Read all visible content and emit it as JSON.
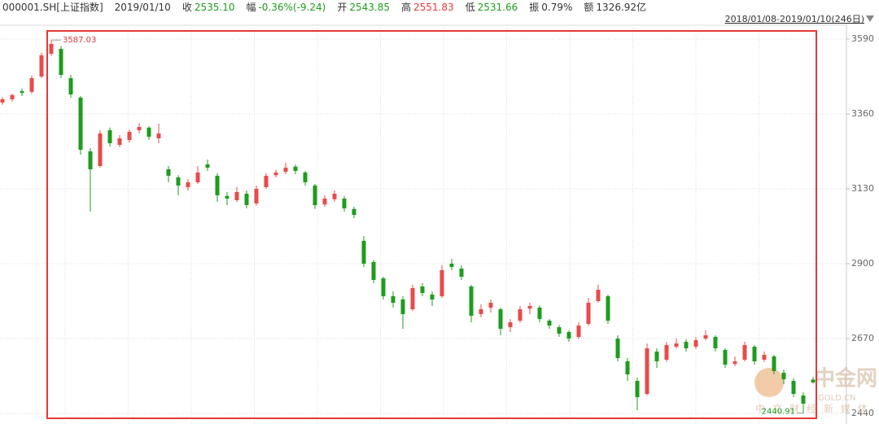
{
  "chart_data": {
    "type": "candlestick",
    "info": [
      {
        "label": "000001.SH[上证指数]",
        "color": "#333333"
      },
      {
        "label": "2019/01/10",
        "color": "#333333"
      },
      {
        "label": "收",
        "value": "2535.10",
        "color": "#1e9c1e"
      },
      {
        "label": "幅",
        "value": "-0.36%(-9.24)",
        "color": "#1e9c1e"
      },
      {
        "label": "开",
        "value": "2543.85",
        "color": "#1e9c1e"
      },
      {
        "label": "高",
        "value": "2551.83",
        "color": "#e23a3a"
      },
      {
        "label": "低",
        "value": "2531.66",
        "color": "#1e9c1e"
      },
      {
        "label": "振",
        "value": "0.79%",
        "color": "#333333"
      },
      {
        "label": "额",
        "value": "1326.92亿",
        "color": "#333333"
      }
    ],
    "range_label": "2018/01/08-2019/01/10(246日)",
    "up_color": "#e84b4b",
    "down_color": "#1e9c1e",
    "ylim": [
      2417.5,
      3635
    ],
    "yticks": [
      2440,
      2670,
      2900,
      3130,
      3360,
      3590
    ],
    "grid": true,
    "candles": [
      [
        3395,
        3412,
        3388,
        3405
      ],
      [
        3405,
        3422,
        3398,
        3418
      ],
      [
        3430,
        3438,
        3415,
        3425
      ],
      [
        3428,
        3478,
        3422,
        3470
      ],
      [
        3475,
        3548,
        3470,
        3540
      ],
      [
        3545,
        3587.03,
        3538,
        3575
      ],
      [
        3560,
        3568,
        3470,
        3480
      ],
      [
        3470,
        3480,
        3410,
        3420
      ],
      [
        3410,
        3415,
        3235,
        3250
      ],
      [
        3245,
        3255,
        3060,
        3190
      ],
      [
        3200,
        3310,
        3195,
        3300
      ],
      [
        3310,
        3318,
        3260,
        3270
      ],
      [
        3265,
        3295,
        3258,
        3285
      ],
      [
        3280,
        3312,
        3272,
        3305
      ],
      [
        3310,
        3332,
        3300,
        3320
      ],
      [
        3318,
        3322,
        3280,
        3290
      ],
      [
        3285,
        3330,
        3270,
        3300
      ],
      [
        3190,
        3200,
        3150,
        3170
      ],
      [
        3165,
        3172,
        3110,
        3140
      ],
      [
        3135,
        3160,
        3125,
        3150
      ],
      [
        3150,
        3200,
        3145,
        3180
      ],
      [
        3205,
        3220,
        3185,
        3195
      ],
      [
        3170,
        3178,
        3090,
        3110
      ],
      [
        3108,
        3120,
        3080,
        3100
      ],
      [
        3095,
        3135,
        3090,
        3120
      ],
      [
        3115,
        3125,
        3070,
        3080
      ],
      [
        3085,
        3140,
        3078,
        3130
      ],
      [
        3135,
        3178,
        3130,
        3170
      ],
      [
        3172,
        3188,
        3165,
        3180
      ],
      [
        3182,
        3210,
        3175,
        3195
      ],
      [
        3198,
        3205,
        3175,
        3185
      ],
      [
        3180,
        3185,
        3140,
        3150
      ],
      [
        3140,
        3145,
        3068,
        3080
      ],
      [
        3082,
        3110,
        3075,
        3100
      ],
      [
        3098,
        3125,
        3090,
        3115
      ],
      [
        3100,
        3108,
        3060,
        3070
      ],
      [
        3068,
        3075,
        3040,
        3050
      ],
      [
        2970,
        2985,
        2890,
        2900
      ],
      [
        2905,
        2912,
        2840,
        2850
      ],
      [
        2855,
        2860,
        2790,
        2800
      ],
      [
        2800,
        2815,
        2765,
        2780
      ],
      [
        2790,
        2800,
        2700,
        2745
      ],
      [
        2760,
        2835,
        2755,
        2825
      ],
      [
        2830,
        2840,
        2800,
        2810
      ],
      [
        2805,
        2815,
        2770,
        2790
      ],
      [
        2800,
        2895,
        2795,
        2880
      ],
      [
        2900,
        2915,
        2880,
        2890
      ],
      [
        2885,
        2895,
        2850,
        2860
      ],
      [
        2830,
        2835,
        2720,
        2740
      ],
      [
        2745,
        2775,
        2735,
        2760
      ],
      [
        2765,
        2790,
        2750,
        2780
      ],
      [
        2760,
        2765,
        2680,
        2700
      ],
      [
        2705,
        2730,
        2690,
        2720
      ],
      [
        2725,
        2770,
        2718,
        2760
      ],
      [
        2762,
        2780,
        2745,
        2770
      ],
      [
        2765,
        2772,
        2720,
        2730
      ],
      [
        2725,
        2730,
        2700,
        2710
      ],
      [
        2705,
        2712,
        2675,
        2685
      ],
      [
        2690,
        2695,
        2660,
        2670
      ],
      [
        2675,
        2720,
        2668,
        2710
      ],
      [
        2715,
        2795,
        2710,
        2780
      ],
      [
        2785,
        2835,
        2780,
        2820
      ],
      [
        2800,
        2805,
        2715,
        2725
      ],
      [
        2670,
        2680,
        2600,
        2610
      ],
      [
        2600,
        2610,
        2540,
        2560
      ],
      [
        2540,
        2550,
        2450,
        2490
      ],
      [
        2500,
        2655,
        2495,
        2640
      ],
      [
        2630,
        2640,
        2580,
        2600
      ],
      [
        2605,
        2660,
        2598,
        2650
      ],
      [
        2645,
        2670,
        2640,
        2655
      ],
      [
        2660,
        2668,
        2630,
        2640
      ],
      [
        2645,
        2675,
        2638,
        2665
      ],
      [
        2670,
        2695,
        2665,
        2680
      ],
      [
        2675,
        2680,
        2630,
        2640
      ],
      [
        2635,
        2640,
        2580,
        2590
      ],
      [
        2592,
        2615,
        2585,
        2600
      ],
      [
        2605,
        2660,
        2600,
        2650
      ],
      [
        2645,
        2650,
        2590,
        2600
      ],
      [
        2605,
        2630,
        2598,
        2620
      ],
      [
        2615,
        2620,
        2560,
        2570
      ],
      [
        2565,
        2575,
        2530,
        2545
      ],
      [
        2540,
        2548,
        2490,
        2500
      ],
      [
        2495,
        2505,
        2440.91,
        2470
      ],
      [
        2543.85,
        2551.83,
        2531.66,
        2535.1
      ]
    ],
    "annotations": [
      {
        "text": "3587.03",
        "index": 5,
        "value": 3587.03,
        "color": "#e23a3a"
      },
      {
        "text": "2440.91",
        "index": 82,
        "value": 2440.91,
        "color": "#1e9c1e"
      }
    ],
    "watermark": [
      "中金网",
      "中文财经新媒体",
      "GOLD.CN"
    ]
  }
}
